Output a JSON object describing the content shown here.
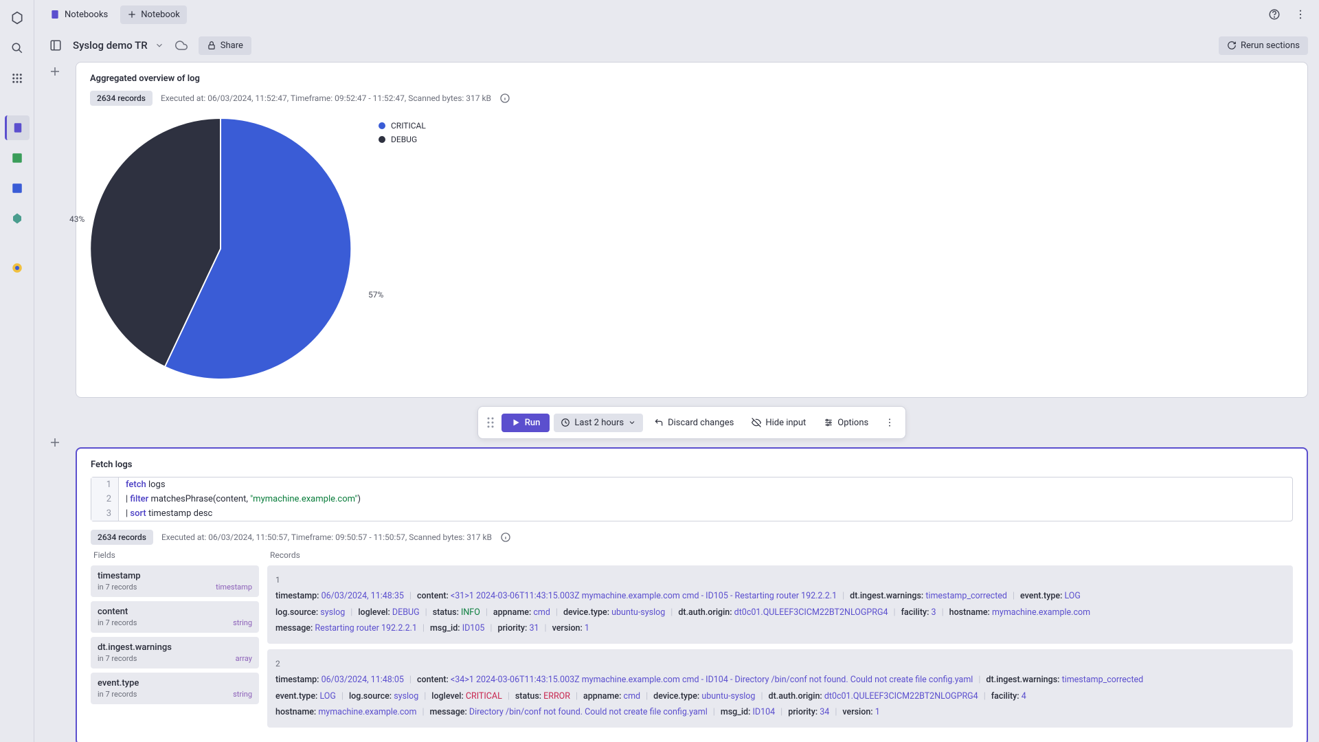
{
  "topbar": {
    "notebooks": "Notebooks",
    "new_notebook": "Notebook"
  },
  "secondbar": {
    "title": "Syslog demo TR",
    "share": "Share",
    "rerun": "Rerun sections"
  },
  "section1": {
    "title": "Aggregated overview of log",
    "records_badge": "2634 records",
    "meta": "Executed at: 06/03/2024, 11:52:47, Timeframe: 09:52:47 - 11:52:47, Scanned bytes: 317 kB",
    "chart": {
      "type": "pie",
      "slices": [
        {
          "label": "CRITICAL",
          "pct": 57,
          "color": "#3a5cd6"
        },
        {
          "label": "DEBUG",
          "pct": 43,
          "color": "#2e3140"
        }
      ],
      "label1": "57%",
      "label2": "43%"
    },
    "legend": {
      "critical": "CRITICAL",
      "debug": "DEBUG"
    }
  },
  "actionbar": {
    "run": "Run",
    "time": "Last 2 hours",
    "discard": "Discard changes",
    "hide": "Hide input",
    "options": "Options"
  },
  "section2": {
    "title": "Fetch logs",
    "code": {
      "l1": "fetch logs",
      "l2": "| filter matchesPhrase(content, \"mymachine.example.com\")",
      "l3": "| sort timestamp desc"
    },
    "records_badge": "2634 records",
    "meta": "Executed at: 06/03/2024, 11:50:57, Timeframe: 09:50:57 - 11:50:57, Scanned bytes: 317 kB",
    "fields_head": "Fields",
    "records_head": "Records",
    "fields_sub": "in 7 records",
    "fields": [
      {
        "name": "timestamp",
        "type": "timestamp"
      },
      {
        "name": "content",
        "type": "string"
      },
      {
        "name": "dt.ingest.warnings",
        "type": "array"
      },
      {
        "name": "event.type",
        "type": "string"
      }
    ],
    "records": [
      {
        "n": "1",
        "rows": [
          [
            {
              "k": "timestamp:",
              "v": "06/03/2024, 11:48:35",
              "cls": "v"
            },
            {
              "k": "content:",
              "v": "<31>1 2024-03-06T11:43:15.003Z mymachine.example.com cmd - ID105 - Restarting router 192.2.2.1",
              "cls": "v"
            },
            {
              "k": "dt.ingest.warnings:",
              "v": "timestamp_corrected",
              "cls": "v"
            },
            {
              "k": "event.type:",
              "v": "LOG",
              "cls": "v"
            }
          ],
          [
            {
              "k": "log.source:",
              "v": "syslog",
              "cls": "v"
            },
            {
              "k": "loglevel:",
              "v": "DEBUG",
              "cls": "v"
            },
            {
              "k": "status:",
              "v": "INFO",
              "cls": "v-green"
            },
            {
              "k": "appname:",
              "v": "cmd",
              "cls": "v"
            },
            {
              "k": "device.type:",
              "v": "ubuntu-syslog",
              "cls": "v"
            },
            {
              "k": "dt.auth.origin:",
              "v": "dt0c01.QULEEF3CICM22BT2NLOGPRG4",
              "cls": "v"
            },
            {
              "k": "facility:",
              "v": "3",
              "cls": "v"
            },
            {
              "k": "hostname:",
              "v": "mymachine.example.com",
              "cls": "v"
            }
          ],
          [
            {
              "k": "message:",
              "v": "Restarting router 192.2.2.1",
              "cls": "v"
            },
            {
              "k": "msg_id:",
              "v": "ID105",
              "cls": "v"
            },
            {
              "k": "priority:",
              "v": "31",
              "cls": "v"
            },
            {
              "k": "version:",
              "v": "1",
              "cls": "v"
            }
          ]
        ]
      },
      {
        "n": "2",
        "rows": [
          [
            {
              "k": "timestamp:",
              "v": "06/03/2024, 11:48:05",
              "cls": "v"
            },
            {
              "k": "content:",
              "v": "<34>1 2024-03-06T11:43:15.003Z mymachine.example.com cmd - ID104 - Directory /bin/conf not found. Could not create file config.yaml",
              "cls": "v"
            },
            {
              "k": "dt.ingest.warnings:",
              "v": "timestamp_corrected",
              "cls": "v"
            }
          ],
          [
            {
              "k": "event.type:",
              "v": "LOG",
              "cls": "v"
            },
            {
              "k": "log.source:",
              "v": "syslog",
              "cls": "v"
            },
            {
              "k": "loglevel:",
              "v": "CRITICAL",
              "cls": "v-red"
            },
            {
              "k": "status:",
              "v": "ERROR",
              "cls": "v-red"
            },
            {
              "k": "appname:",
              "v": "cmd",
              "cls": "v"
            },
            {
              "k": "device.type:",
              "v": "ubuntu-syslog",
              "cls": "v"
            },
            {
              "k": "dt.auth.origin:",
              "v": "dt0c01.QULEEF3CICM22BT2NLOGPRG4",
              "cls": "v"
            },
            {
              "k": "facility:",
              "v": "4",
              "cls": "v"
            }
          ],
          [
            {
              "k": "hostname:",
              "v": "mymachine.example.com",
              "cls": "v"
            },
            {
              "k": "message:",
              "v": "Directory /bin/conf not found. Could not create file config.yaml",
              "cls": "v"
            },
            {
              "k": "msg_id:",
              "v": "ID104",
              "cls": "v"
            },
            {
              "k": "priority:",
              "v": "34",
              "cls": "v"
            },
            {
              "k": "version:",
              "v": "1",
              "cls": "v"
            }
          ]
        ]
      }
    ]
  },
  "colors": {
    "accent": "#5b4fce",
    "pie1": "#3a5cd6",
    "pie2": "#2e3140"
  }
}
